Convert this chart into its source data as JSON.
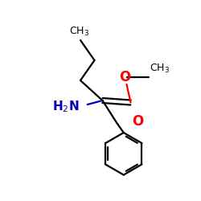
{
  "bg_color": "#ffffff",
  "bond_color": "#000000",
  "o_color": "#ff0000",
  "n_color": "#0000bb",
  "figsize": [
    2.5,
    2.5
  ],
  "dpi": 100,
  "lw": 1.6
}
